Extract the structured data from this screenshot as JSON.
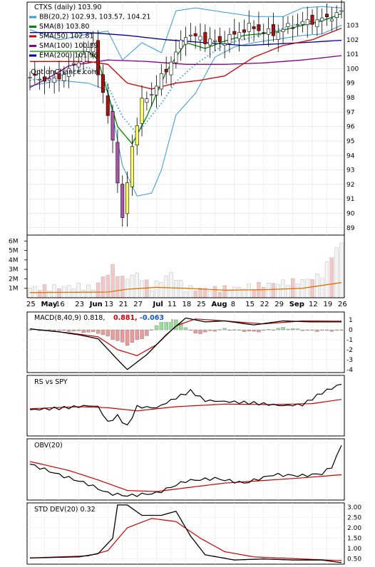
{
  "chart_data": {
    "type": "line",
    "title": "CTXS (daily) 103.90",
    "watermark": "OptionChance.com",
    "x_ticks": [
      "25",
      "May",
      "16",
      "23",
      "Jun",
      "13",
      "21",
      "27",
      "Jul",
      "11",
      "18",
      "25",
      "Aug",
      "8",
      "15",
      "22",
      "29",
      "Sep",
      "12",
      "19",
      "26"
    ],
    "price_axis": {
      "ylim": [
        88.5,
        104.6
      ],
      "ticks": [
        103,
        102,
        101,
        100,
        99,
        98,
        97,
        96,
        95,
        94,
        93,
        92,
        91,
        90,
        89
      ]
    },
    "volume_axis": {
      "ylim": [
        0,
        7.0
      ],
      "ticks": [
        "6M",
        "5M",
        "4M",
        "3M",
        "2M",
        "1M"
      ],
      "tick_values": [
        6,
        5,
        4,
        3,
        2,
        1
      ]
    },
    "legend": [
      {
        "label": "CTXS (daily) 103.90",
        "color": "#000000"
      },
      {
        "label": "BB(20,2) 102.93, 103.57, 104.21",
        "color": "#3399dd"
      },
      {
        "label": "SMA(8) 103.80",
        "color": "#008800"
      },
      {
        "label": "SMA(50) 102.81",
        "color": "#cc0000"
      },
      {
        "label": "SMA(100) 100.89",
        "color": "#880088"
      },
      {
        "label": "EMA(200) 101.96",
        "color": "#000099"
      }
    ],
    "price_key": [
      [
        0,
        99.4
      ],
      [
        5,
        99.2
      ],
      [
        8,
        99.9
      ],
      [
        13,
        101.7
      ],
      [
        14,
        99.8
      ],
      [
        17,
        95.1
      ],
      [
        19,
        89.5
      ],
      [
        21,
        94.7
      ],
      [
        23,
        97.7
      ],
      [
        25,
        98.3
      ],
      [
        29,
        100.5
      ],
      [
        32,
        102.4
      ],
      [
        36,
        102.0
      ],
      [
        39,
        101.8
      ],
      [
        45,
        102.9
      ],
      [
        50,
        102.4
      ],
      [
        53,
        102.9
      ],
      [
        56,
        103.2
      ],
      [
        60,
        103.4
      ],
      [
        64,
        103.9
      ]
    ],
    "price_series": {
      "n": 65
    },
    "bb_upper_key": [
      [
        0,
        102.7
      ],
      [
        6,
        102.0
      ],
      [
        12,
        102.4
      ],
      [
        16,
        102.6
      ],
      [
        19,
        100.6
      ],
      [
        23,
        101.8
      ],
      [
        27,
        101.1
      ],
      [
        30,
        104.0
      ],
      [
        34,
        104.2
      ],
      [
        40,
        103.9
      ],
      [
        46,
        103.6
      ],
      [
        52,
        103.6
      ],
      [
        56,
        104.2
      ],
      [
        60,
        104.3
      ],
      [
        64,
        104.2
      ]
    ],
    "bb_mid_key": [
      [
        0,
        99.2
      ],
      [
        6,
        99.5
      ],
      [
        12,
        100.1
      ],
      [
        15,
        99.5
      ],
      [
        19,
        96.7
      ],
      [
        22,
        95.5
      ],
      [
        27,
        97.6
      ],
      [
        30,
        99.1
      ],
      [
        34,
        100.3
      ],
      [
        40,
        101.7
      ],
      [
        46,
        102.2
      ],
      [
        52,
        102.8
      ],
      [
        56,
        103.2
      ],
      [
        60,
        103.4
      ],
      [
        64,
        103.6
      ]
    ],
    "bb_lower_key": [
      [
        0,
        98.8
      ],
      [
        6,
        99.2
      ],
      [
        12,
        99.0
      ],
      [
        16,
        98.5
      ],
      [
        19,
        93.3
      ],
      [
        22,
        91.2
      ],
      [
        25,
        91.4
      ],
      [
        27,
        93.0
      ],
      [
        30,
        96.8
      ],
      [
        34,
        98.3
      ],
      [
        38,
        100.8
      ],
      [
        42,
        101.5
      ],
      [
        46,
        101.8
      ],
      [
        52,
        102.1
      ],
      [
        56,
        102.3
      ],
      [
        60,
        102.4
      ],
      [
        64,
        103.0
      ]
    ],
    "sma8_key": [
      [
        12,
        101.2
      ],
      [
        14,
        100.6
      ],
      [
        18,
        96.0
      ],
      [
        21,
        94.8
      ],
      [
        24,
        96.7
      ],
      [
        28,
        99.8
      ],
      [
        32,
        101.8
      ],
      [
        36,
        101.4
      ],
      [
        40,
        101.9
      ],
      [
        44,
        102.3
      ],
      [
        50,
        102.5
      ],
      [
        56,
        103.0
      ],
      [
        60,
        103.3
      ],
      [
        64,
        103.8
      ]
    ],
    "sma50_key": [
      [
        12,
        100.5
      ],
      [
        16,
        100.3
      ],
      [
        20,
        99.0
      ],
      [
        25,
        98.6
      ],
      [
        30,
        99.0
      ],
      [
        35,
        99.2
      ],
      [
        40,
        99.5
      ],
      [
        46,
        100.8
      ],
      [
        52,
        101.6
      ],
      [
        58,
        102.0
      ],
      [
        64,
        102.8
      ]
    ],
    "sma100_key": [
      [
        0,
        98.7
      ],
      [
        4,
        99.4
      ],
      [
        8,
        100.2
      ],
      [
        16,
        100.6
      ],
      [
        24,
        100.5
      ],
      [
        32,
        100.3
      ],
      [
        40,
        100.3
      ],
      [
        48,
        100.4
      ],
      [
        56,
        100.6
      ],
      [
        64,
        100.9
      ]
    ],
    "ema200_key": [
      [
        12,
        102.5
      ],
      [
        20,
        102.3
      ],
      [
        28,
        102.0
      ],
      [
        36,
        101.8
      ],
      [
        44,
        101.6
      ],
      [
        50,
        101.7
      ],
      [
        56,
        101.8
      ],
      [
        64,
        101.96
      ]
    ],
    "volume_key": [
      [
        0,
        1.0
      ],
      [
        5,
        1.1
      ],
      [
        10,
        1.2
      ],
      [
        13,
        1.0
      ],
      [
        17,
        3.2
      ],
      [
        19,
        2.0
      ],
      [
        22,
        2.5
      ],
      [
        25,
        1.1
      ],
      [
        29,
        2.6
      ],
      [
        32,
        1.0
      ],
      [
        38,
        0.9
      ],
      [
        44,
        1.1
      ],
      [
        50,
        1.5
      ],
      [
        56,
        1.8
      ],
      [
        60,
        2.4
      ],
      [
        62,
        4.5
      ],
      [
        64,
        5.8
      ]
    ],
    "volume_ma_key": [
      [
        0,
        0.55
      ],
      [
        16,
        0.6
      ],
      [
        20,
        0.9
      ],
      [
        26,
        1.1
      ],
      [
        32,
        1.0
      ],
      [
        40,
        0.8
      ],
      [
        48,
        0.85
      ],
      [
        56,
        1.0
      ],
      [
        64,
        1.6
      ]
    ],
    "macd": {
      "label": "MACD(8,40,9)",
      "value": "0.818,",
      "signal": "0.881,",
      "hist": "-0.063",
      "ylim": [
        -4.3,
        1.8
      ],
      "ticks": [
        1,
        0,
        -1,
        -2,
        -3,
        -4
      ],
      "line_key": [
        [
          0,
          0.1
        ],
        [
          6,
          -0.2
        ],
        [
          10,
          -0.5
        ],
        [
          14,
          -0.9
        ],
        [
          18,
          -3.0
        ],
        [
          20,
          -4.0
        ],
        [
          24,
          -2.5
        ],
        [
          28,
          -0.5
        ],
        [
          32,
          1.2
        ],
        [
          36,
          0.8
        ],
        [
          40,
          0.9
        ],
        [
          46,
          0.5
        ],
        [
          52,
          0.9
        ],
        [
          58,
          0.8
        ],
        [
          64,
          0.8
        ]
      ],
      "signal_key": [
        [
          0,
          0.1
        ],
        [
          8,
          -0.3
        ],
        [
          14,
          -0.7
        ],
        [
          18,
          -2.0
        ],
        [
          22,
          -2.6
        ],
        [
          26,
          -1.5
        ],
        [
          30,
          0.4
        ],
        [
          34,
          1.1
        ],
        [
          40,
          0.9
        ],
        [
          48,
          0.6
        ],
        [
          56,
          0.9
        ],
        [
          64,
          0.88
        ]
      ],
      "hist_key": [
        [
          0,
          0.0
        ],
        [
          8,
          -0.1
        ],
        [
          14,
          -0.3
        ],
        [
          17,
          -0.9
        ],
        [
          20,
          -1.5
        ],
        [
          24,
          -0.6
        ],
        [
          26,
          0.5
        ],
        [
          28,
          1.2
        ],
        [
          30,
          1.0
        ],
        [
          34,
          -0.4
        ],
        [
          40,
          0.1
        ],
        [
          46,
          -0.2
        ],
        [
          52,
          0.2
        ],
        [
          58,
          -0.1
        ],
        [
          64,
          -0.06
        ]
      ]
    },
    "rs": {
      "label": "RS vs SPY",
      "line_key": [
        [
          0,
          0.42
        ],
        [
          6,
          0.45
        ],
        [
          12,
          0.5
        ],
        [
          14,
          0.48
        ],
        [
          16,
          0.18
        ],
        [
          18,
          0.3
        ],
        [
          20,
          0.1
        ],
        [
          22,
          0.48
        ],
        [
          26,
          0.46
        ],
        [
          30,
          0.65
        ],
        [
          33,
          0.78
        ],
        [
          36,
          0.6
        ],
        [
          40,
          0.58
        ],
        [
          46,
          0.55
        ],
        [
          52,
          0.5
        ],
        [
          56,
          0.52
        ],
        [
          60,
          0.75
        ],
        [
          64,
          0.92
        ]
      ],
      "ma_key": [
        [
          0,
          0.44
        ],
        [
          10,
          0.48
        ],
        [
          16,
          0.46
        ],
        [
          22,
          0.4
        ],
        [
          30,
          0.48
        ],
        [
          40,
          0.53
        ],
        [
          50,
          0.52
        ],
        [
          58,
          0.54
        ],
        [
          64,
          0.62
        ]
      ]
    },
    "obv": {
      "label": "OBV(20)",
      "line_key": [
        [
          0,
          0.6
        ],
        [
          6,
          0.4
        ],
        [
          12,
          0.22
        ],
        [
          16,
          0.05
        ],
        [
          20,
          0.0
        ],
        [
          26,
          0.05
        ],
        [
          32,
          0.28
        ],
        [
          38,
          0.33
        ],
        [
          44,
          0.24
        ],
        [
          50,
          0.4
        ],
        [
          56,
          0.38
        ],
        [
          60,
          0.42
        ],
        [
          62,
          0.55
        ],
        [
          64,
          0.95
        ]
      ],
      "ma_key": [
        [
          0,
          0.65
        ],
        [
          8,
          0.48
        ],
        [
          14,
          0.3
        ],
        [
          20,
          0.1
        ],
        [
          26,
          0.08
        ],
        [
          32,
          0.15
        ],
        [
          40,
          0.24
        ],
        [
          48,
          0.29
        ],
        [
          56,
          0.34
        ],
        [
          64,
          0.4
        ]
      ]
    },
    "std": {
      "label": "STD DEV(20) 0.32",
      "ylim": [
        0.25,
        3.2
      ],
      "ticks": [
        "3.00",
        "2.50",
        "2.00",
        "1.50",
        "1.00",
        "0.50"
      ],
      "tick_values": [
        3.0,
        2.5,
        2.0,
        1.5,
        1.0,
        0.5
      ],
      "line_key": [
        [
          0,
          0.55
        ],
        [
          10,
          0.6
        ],
        [
          14,
          0.75
        ],
        [
          17,
          1.5
        ],
        [
          18,
          3.1
        ],
        [
          20,
          3.1
        ],
        [
          23,
          2.6
        ],
        [
          27,
          2.6
        ],
        [
          30,
          2.8
        ],
        [
          33,
          1.6
        ],
        [
          36,
          0.7
        ],
        [
          42,
          0.45
        ],
        [
          48,
          0.5
        ],
        [
          54,
          0.45
        ],
        [
          60,
          0.45
        ],
        [
          64,
          0.32
        ]
      ],
      "ma_key": [
        [
          0,
          0.55
        ],
        [
          12,
          0.65
        ],
        [
          16,
          0.9
        ],
        [
          20,
          2.0
        ],
        [
          25,
          2.45
        ],
        [
          30,
          2.3
        ],
        [
          35,
          1.5
        ],
        [
          40,
          0.85
        ],
        [
          46,
          0.6
        ],
        [
          54,
          0.52
        ],
        [
          64,
          0.42
        ]
      ]
    }
  }
}
